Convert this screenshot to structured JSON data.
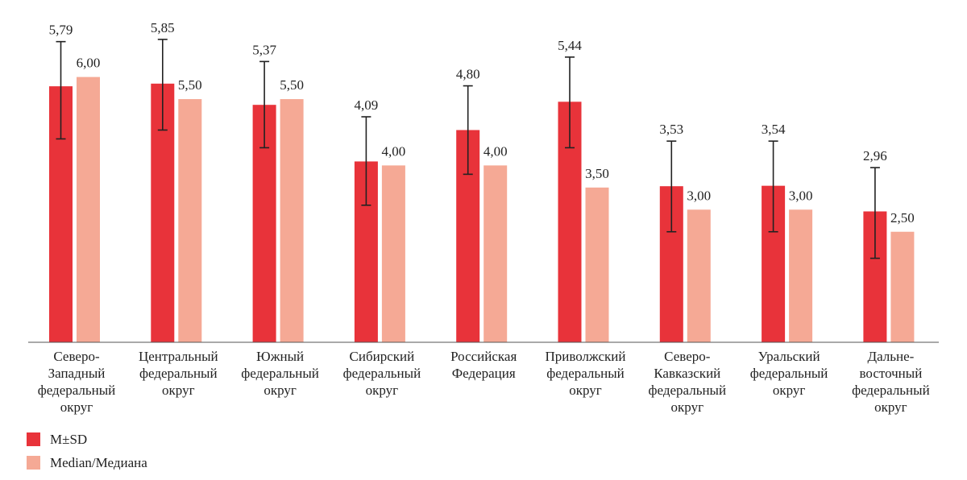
{
  "chart_data": {
    "type": "bar",
    "categories": [
      [
        "Северо-",
        "Западный",
        "федеральный",
        "округ"
      ],
      [
        "Центральный",
        "федеральный",
        "округ"
      ],
      [
        "Южный",
        "федеральный",
        "округ"
      ],
      [
        "Сибирский",
        "федеральный",
        "округ"
      ],
      [
        "Российская",
        "Федерация"
      ],
      [
        "Приволжский",
        "федеральный",
        "округ"
      ],
      [
        "Северо-",
        "Кавказский",
        "федеральный",
        "округ"
      ],
      [
        "Уральский",
        "федеральный",
        "округ"
      ],
      [
        "Дальне-",
        "восточный",
        "федеральный",
        "округ"
      ]
    ],
    "series": [
      {
        "name": "M±SD",
        "color": "#e8333a",
        "values": [
          5.79,
          5.85,
          5.37,
          4.09,
          4.8,
          5.44,
          3.53,
          3.54,
          2.96
        ],
        "labels": [
          "5,79",
          "5,85",
          "5,37",
          "4,09",
          "4,80",
          "5,44",
          "3,53",
          "3,54",
          "2,96"
        ],
        "error_bars": {
          "lower": [
            4.6,
            4.8,
            4.4,
            3.1,
            3.8,
            4.4,
            2.5,
            2.5,
            1.9
          ],
          "upper": [
            6.8,
            6.85,
            6.35,
            5.1,
            5.8,
            6.45,
            4.55,
            4.55,
            3.95
          ]
        }
      },
      {
        "name": "Median/Медиана",
        "color": "#f5a995",
        "values": [
          6.0,
          5.5,
          5.5,
          4.0,
          4.0,
          3.5,
          3.0,
          3.0,
          2.5
        ],
        "labels": [
          "6,00",
          "5,50",
          "5,50",
          "4,00",
          "4,00",
          "3,50",
          "3,00",
          "3,00",
          "2,50"
        ]
      }
    ],
    "ylim": [
      0,
      7.6
    ],
    "grid": false,
    "legend": "bottom-left"
  }
}
